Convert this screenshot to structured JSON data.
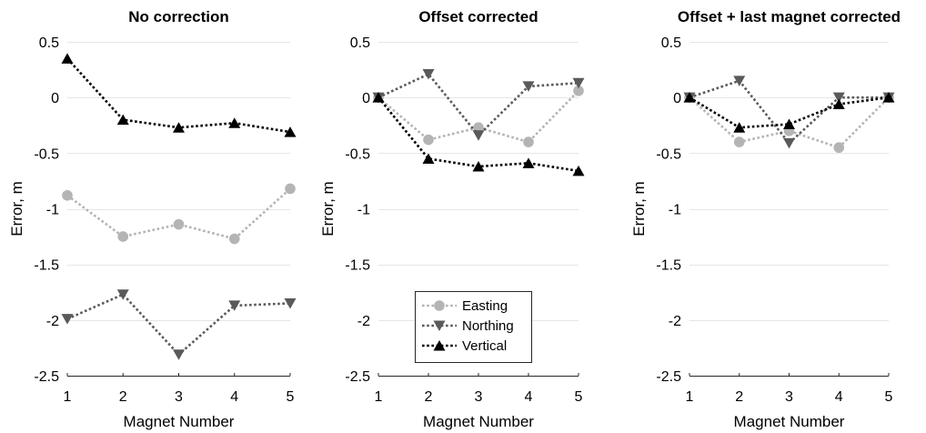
{
  "chart_data": [
    {
      "type": "line",
      "title": "No correction",
      "xlabel": "Magnet Number",
      "ylabel": "Error, m",
      "x": [
        1,
        2,
        3,
        4,
        5
      ],
      "xlim": [
        1,
        5
      ],
      "ylim": [
        -2.5,
        0.5
      ],
      "xticks": [
        "1",
        "2",
        "3",
        "4",
        "5"
      ],
      "yticks": [
        "0.5",
        "0",
        "-0.5",
        "-1",
        "-1.5",
        "-2",
        "-2.5"
      ],
      "grid": "horizontal",
      "series": [
        {
          "name": "Easting",
          "color": "#b4b4b4",
          "marker": "circle",
          "values": [
            -0.88,
            -1.25,
            -1.14,
            -1.27,
            -0.82
          ]
        },
        {
          "name": "Northing",
          "color": "#5a5a5a",
          "marker": "triangle-down",
          "values": [
            -1.99,
            -1.77,
            -2.31,
            -1.87,
            -1.85
          ]
        },
        {
          "name": "Vertical",
          "color": "#000000",
          "marker": "triangle-up",
          "values": [
            0.35,
            -0.2,
            -0.27,
            -0.23,
            -0.31
          ]
        }
      ]
    },
    {
      "type": "line",
      "title": "Offset corrected",
      "xlabel": "Magnet Number",
      "ylabel": "Error, m",
      "x": [
        1,
        2,
        3,
        4,
        5
      ],
      "xlim": [
        1,
        5
      ],
      "ylim": [
        -2.5,
        0.5
      ],
      "xticks": [
        "1",
        "2",
        "3",
        "4",
        "5"
      ],
      "yticks": [
        "0.5",
        "0",
        "-0.5",
        "-1",
        "-1.5",
        "-2",
        "-2.5"
      ],
      "grid": "horizontal",
      "legend": "bottom-center",
      "series": [
        {
          "name": "Easting",
          "color": "#b4b4b4",
          "marker": "circle",
          "values": [
            0.0,
            -0.38,
            -0.27,
            -0.4,
            0.06
          ]
        },
        {
          "name": "Northing",
          "color": "#5a5a5a",
          "marker": "triangle-down",
          "values": [
            0.0,
            0.21,
            -0.34,
            0.1,
            0.13
          ]
        },
        {
          "name": "Vertical",
          "color": "#000000",
          "marker": "triangle-up",
          "values": [
            0.0,
            -0.55,
            -0.62,
            -0.59,
            -0.66
          ]
        }
      ]
    },
    {
      "type": "line",
      "title": "Offset + last magnet corrected",
      "xlabel": "Magnet Number",
      "ylabel": "Error, m",
      "x": [
        1,
        2,
        3,
        4,
        5
      ],
      "xlim": [
        1,
        5
      ],
      "ylim": [
        -2.5,
        0.5
      ],
      "xticks": [
        "1",
        "2",
        "3",
        "4",
        "5"
      ],
      "yticks": [
        "0.5",
        "0",
        "-0.5",
        "-1",
        "-1.5",
        "-2",
        "-2.5"
      ],
      "grid": "horizontal",
      "series": [
        {
          "name": "Easting",
          "color": "#b4b4b4",
          "marker": "circle",
          "values": [
            0.0,
            -0.4,
            -0.3,
            -0.45,
            0.0
          ]
        },
        {
          "name": "Northing",
          "color": "#5a5a5a",
          "marker": "triangle-down",
          "values": [
            0.0,
            0.15,
            -0.41,
            0.0,
            0.0
          ]
        },
        {
          "name": "Vertical",
          "color": "#000000",
          "marker": "triangle-up",
          "values": [
            0.0,
            -0.27,
            -0.24,
            -0.06,
            0.0
          ]
        }
      ]
    }
  ]
}
